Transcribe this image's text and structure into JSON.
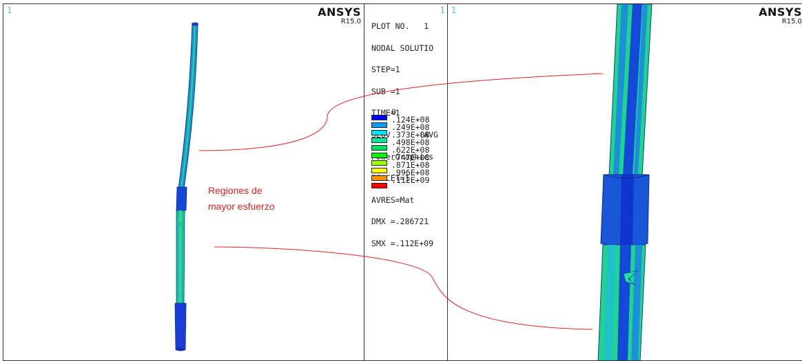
{
  "left_view": {
    "window_number": "1",
    "brand": "ANSYS",
    "release": "R15.0"
  },
  "legend": {
    "window_number": "1",
    "info_lines": [
      "PLOT NO.   1",
      "NODAL SOLUTIO",
      "STEP=1",
      "SUB =1",
      "TIME=1",
      "SEQV      (AVG",
      "PowerGraphics",
      "EFACET=1",
      "AVRES=Mat",
      "DMX =.286721",
      "SMX =.112E+09"
    ],
    "scale": [
      {
        "label": "0",
        "color": "#0000ff"
      },
      {
        "label": ".124E+08",
        "color": "#00a0ff"
      },
      {
        "label": ".249E+08",
        "color": "#00e0ff"
      },
      {
        "label": ".373E+08",
        "color": "#00e6a0"
      },
      {
        "label": ".498E+08",
        "color": "#00e060"
      },
      {
        "label": ".622E+08",
        "color": "#00ff00"
      },
      {
        "label": ".747E+08",
        "color": "#a0ff00"
      },
      {
        "label": ".871E+08",
        "color": "#ffff00"
      },
      {
        "label": ".996E+08",
        "color": "#ff9000"
      },
      {
        "label": ".112E+09",
        "color": "#ff0000"
      }
    ],
    "scale_bottom_label": ""
  },
  "right_view": {
    "window_number": "1",
    "brand": "ANSYS",
    "release": "R15.0"
  },
  "annotation": {
    "line1": "Regiones de",
    "line2": "mayor esfuerzo",
    "color": "#e0201c"
  }
}
